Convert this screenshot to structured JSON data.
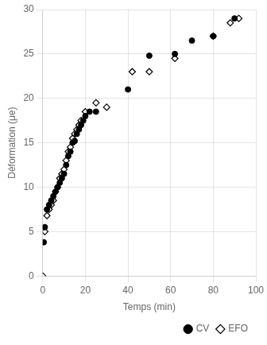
{
  "chart_data": {
    "type": "scatter",
    "xlabel": "Temps (min)",
    "ylabel": "Déformation (μe)",
    "series": [
      {
        "name": "CV",
        "color": "#000000",
        "marker": "circle",
        "x": [
          0.5,
          1,
          2,
          3,
          4,
          5,
          6,
          7,
          8,
          9,
          10,
          11,
          12,
          13,
          14,
          15,
          16,
          17,
          18,
          19,
          20,
          22,
          25,
          40,
          50,
          62,
          70,
          80,
          90
        ],
        "values": [
          3.8,
          5.5,
          7.5,
          8.0,
          8.5,
          9.0,
          9.5,
          10.0,
          10.5,
          11.0,
          11.5,
          12.5,
          13.5,
          14.0,
          15.0,
          15.2,
          16.0,
          16.5,
          17.0,
          17.5,
          18.0,
          18.5,
          18.5,
          21.0,
          24.8,
          25.0,
          26.5,
          27.0,
          29.0
        ]
      },
      {
        "name": "EFO",
        "color": "#000000",
        "marker": "open_diamond",
        "x": [
          0,
          1,
          2,
          3,
          4,
          5,
          6,
          7,
          8,
          9,
          10,
          11,
          12,
          13,
          14,
          15,
          16,
          17,
          18,
          20,
          25,
          30,
          42,
          50,
          62,
          80,
          88,
          92
        ],
        "values": [
          0,
          5.0,
          6.8,
          7.5,
          8.0,
          8.5,
          9.5,
          10.0,
          11.0,
          11.5,
          12.0,
          13.0,
          14.0,
          14.5,
          15.5,
          16.0,
          16.5,
          17.0,
          17.5,
          18.5,
          19.5,
          19.0,
          23.0,
          23.0,
          24.5,
          27.0,
          28.5,
          29.0
        ]
      }
    ],
    "xlim": [
      0,
      100
    ],
    "ylim": [
      0,
      30
    ],
    "xticks": [
      0,
      20,
      40,
      60,
      80,
      100
    ],
    "yticks": [
      0,
      5,
      10,
      15,
      20,
      25,
      30
    ],
    "grid": true,
    "legend": "lower right"
  }
}
